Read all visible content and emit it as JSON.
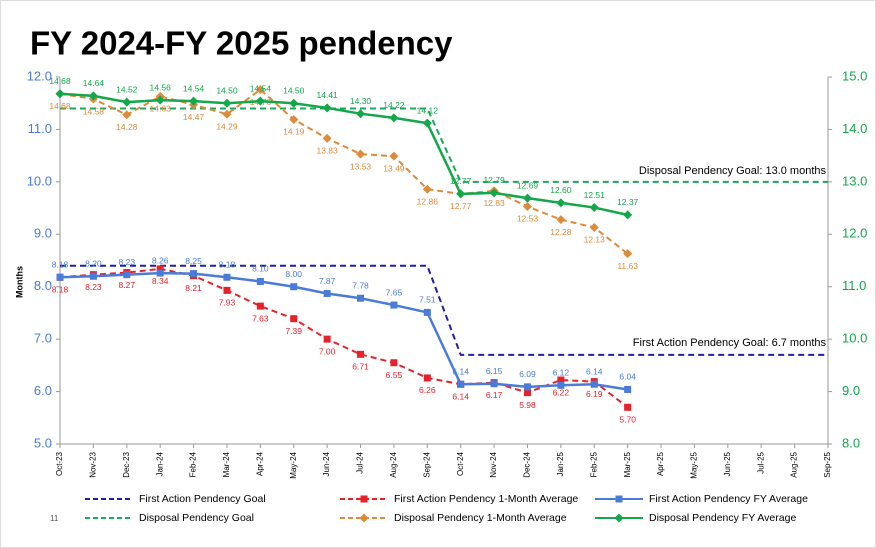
{
  "chart_data": {
    "type": "line",
    "title": "FY 2024-FY 2025 pendency",
    "y_label": "Months",
    "page_number": "11",
    "annotations": [
      "Disposal Pendency Goal: 13.0 months",
      "First Action Pendency Goal: 6.7 months"
    ],
    "categories": [
      "Oct-23",
      "Nov-23",
      "Dec-23",
      "Jan-24",
      "Feb-24",
      "Mar-24",
      "Apr-24",
      "May-24",
      "Jun-24",
      "Jul-24",
      "Aug-24",
      "Sep-24",
      "Oct-24",
      "Nov-24",
      "Dec-24",
      "Jan-25",
      "Feb-25",
      "Mar-25",
      "Apr-25",
      "May-25",
      "Jun-25",
      "Jul-25",
      "Aug-25",
      "Sep-25"
    ],
    "ylim": [
      5,
      12
    ],
    "yticks": [
      {
        "value": 5,
        "label": "5.0"
      },
      {
        "value": 6,
        "label": "6.0"
      },
      {
        "value": 7,
        "label": "7.0"
      },
      {
        "value": 8,
        "label": "8.0"
      },
      {
        "value": 9,
        "label": "9.0"
      },
      {
        "value": 10,
        "label": "10.0"
      },
      {
        "value": 11,
        "label": "11.0"
      },
      {
        "value": 12,
        "label": "12.0"
      }
    ],
    "y2lim": [
      8,
      15
    ],
    "y2ticks": [
      {
        "value": 8,
        "label": "8.0"
      },
      {
        "value": 9,
        "label": "9.0"
      },
      {
        "value": 10,
        "label": "10.0"
      },
      {
        "value": 11,
        "label": "11.0"
      },
      {
        "value": 12,
        "label": "12.0"
      },
      {
        "value": 13,
        "label": "13.0"
      },
      {
        "value": 14,
        "label": "14.0"
      },
      {
        "value": 15,
        "label": "15.0"
      }
    ],
    "series": [
      {
        "name": "First Action Pendency Goal",
        "color": "#1f1fa8",
        "dashed": true,
        "marker": "none",
        "values": [
          8.4,
          8.4,
          8.4,
          8.4,
          8.4,
          8.4,
          8.4,
          8.4,
          8.4,
          8.4,
          8.4,
          8.4,
          6.7,
          6.7,
          6.7,
          6.7,
          6.7,
          6.7,
          6.7,
          6.7,
          6.7,
          6.7,
          6.7,
          6.7
        ]
      },
      {
        "name": "First Action Pendency 1-Month Average",
        "color": "#e8202a",
        "dashed": true,
        "marker": "square",
        "label_side": "below",
        "values": [
          8.18,
          8.23,
          8.27,
          8.34,
          8.21,
          7.93,
          7.63,
          7.39,
          7.0,
          6.71,
          6.55,
          6.26,
          6.14,
          6.17,
          5.98,
          6.22,
          6.19,
          5.7,
          null,
          null,
          null,
          null,
          null,
          null
        ],
        "value_labels": [
          "8.18",
          "8.23",
          "8.27",
          "8.34",
          "8.21",
          "7.93",
          "7.63",
          "7.39",
          "7.00",
          "6.71",
          "6.55",
          "6.26",
          "6.14",
          "6.17",
          "5.98",
          "6.22",
          "6.19",
          "5.70",
          null,
          null,
          null,
          null,
          null,
          null
        ]
      },
      {
        "name": "First Action Pendency FY Average",
        "color": "#4a7bd8",
        "dashed": false,
        "marker": "square",
        "label_side": "above",
        "values": [
          8.18,
          8.2,
          8.23,
          8.26,
          8.25,
          8.18,
          8.1,
          8.0,
          7.87,
          7.78,
          7.65,
          7.51,
          6.14,
          6.15,
          6.09,
          6.12,
          6.14,
          6.04,
          null,
          null,
          null,
          null,
          null,
          null
        ],
        "value_labels": [
          "8.18",
          "8.20",
          "8.23",
          "8.26",
          "8.25",
          "8.18",
          "8.10",
          "8.00",
          "7.87",
          "7.78",
          "7.65",
          "7.51",
          "6.14",
          "6.15",
          "6.09",
          "6.12",
          "6.14",
          "6.04",
          null,
          null,
          null,
          null,
          null,
          null
        ]
      },
      {
        "name": "Disposal Pendency Goal",
        "color": "#1aa85a",
        "dashed": true,
        "marker": "none",
        "axis": "y2",
        "values": [
          14.4,
          14.4,
          14.4,
          14.4,
          14.4,
          14.4,
          14.4,
          14.4,
          14.4,
          14.4,
          14.4,
          14.4,
          13,
          13,
          13,
          13,
          13,
          13,
          13,
          13,
          13,
          13,
          13,
          13
        ]
      },
      {
        "name": "Disposal Pendency 1-Month Average",
        "color": "#dd8a3a",
        "dashed": true,
        "marker": "diamond",
        "axis": "y2",
        "label_side": "below",
        "values": [
          14.68,
          14.58,
          14.28,
          14.63,
          14.47,
          14.29,
          14.76,
          14.19,
          13.83,
          13.53,
          13.49,
          12.86,
          12.77,
          12.83,
          12.53,
          12.28,
          12.13,
          11.63,
          null,
          null,
          null,
          null,
          null,
          null
        ],
        "value_labels": [
          "14.68",
          "14.58",
          "14.28",
          "14.63",
          "14.47",
          "14.29",
          "14.76",
          "14.19",
          "13.83",
          "13.53",
          "13.49",
          "12.86",
          "12.77",
          "12.83",
          "12.53",
          "12.28",
          "12.13",
          "11.63",
          null,
          null,
          null,
          null,
          null,
          null
        ]
      },
      {
        "name": "Disposal Pendency FY Average",
        "color": "#12a84a",
        "dashed": false,
        "marker": "diamond",
        "axis": "y2",
        "label_side": "above",
        "values": [
          14.68,
          14.64,
          14.52,
          14.56,
          14.54,
          14.5,
          14.54,
          14.5,
          14.41,
          14.3,
          14.22,
          14.12,
          12.77,
          12.79,
          12.69,
          12.6,
          12.51,
          12.37,
          null,
          null,
          null,
          null,
          null,
          null
        ],
        "value_labels": [
          "14.68",
          "14.64",
          "14.52",
          "14.56",
          "14.54",
          "14.50",
          "14.54",
          "14.50",
          "14.41",
          "14.30",
          "14.22",
          "14.12",
          "12.77",
          "12.79",
          "12.69",
          "12.60",
          "12.51",
          "12.37",
          null,
          null,
          null,
          null,
          null,
          null
        ]
      }
    ]
  }
}
